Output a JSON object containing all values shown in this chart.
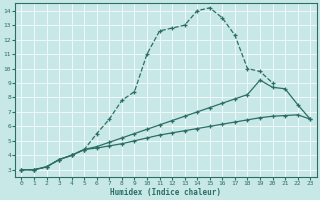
{
  "xlabel": "Humidex (Indice chaleur)",
  "background_color": "#c8e8e8",
  "grid_color": "#ffffff",
  "line_color": "#2a6e64",
  "xlim": [
    -0.5,
    23.5
  ],
  "ylim": [
    2.5,
    14.5
  ],
  "xticks": [
    0,
    1,
    2,
    3,
    4,
    5,
    6,
    7,
    8,
    9,
    10,
    11,
    12,
    13,
    14,
    15,
    16,
    17,
    18,
    19,
    20,
    21,
    22,
    23
  ],
  "yticks": [
    3,
    4,
    5,
    6,
    7,
    8,
    9,
    10,
    11,
    12,
    13,
    14
  ],
  "line1_x": [
    0,
    1,
    2,
    3,
    4,
    5,
    6,
    7,
    8,
    9,
    10,
    11,
    12,
    13,
    14,
    15,
    16,
    17,
    18,
    19,
    20
  ],
  "line1_y": [
    3.0,
    3.0,
    3.2,
    3.7,
    4.0,
    4.4,
    5.5,
    6.5,
    7.8,
    8.4,
    11.0,
    12.6,
    12.8,
    13.0,
    14.0,
    14.2,
    13.5,
    12.3,
    10.0,
    9.8,
    9.0
  ],
  "line2_x": [
    0,
    1,
    2,
    3,
    4,
    5,
    6,
    7,
    8,
    9,
    10,
    11,
    12,
    13,
    14,
    15,
    16,
    17,
    18,
    19,
    20,
    21,
    22,
    23
  ],
  "line2_y": [
    3.0,
    3.0,
    3.2,
    3.7,
    4.0,
    4.4,
    4.6,
    4.9,
    5.2,
    5.5,
    5.8,
    6.1,
    6.4,
    6.7,
    7.0,
    7.3,
    7.6,
    7.9,
    8.2,
    9.2,
    8.7,
    8.6,
    7.5,
    6.5
  ],
  "line3_x": [
    0,
    1,
    2,
    3,
    4,
    5,
    6,
    7,
    8,
    9,
    10,
    11,
    12,
    13,
    14,
    15,
    16,
    17,
    18,
    19,
    20,
    21,
    22,
    23
  ],
  "line3_y": [
    3.0,
    3.0,
    3.2,
    3.7,
    4.0,
    4.4,
    4.5,
    4.65,
    4.8,
    5.0,
    5.2,
    5.4,
    5.55,
    5.7,
    5.85,
    6.0,
    6.15,
    6.3,
    6.45,
    6.6,
    6.7,
    6.75,
    6.8,
    6.5
  ]
}
